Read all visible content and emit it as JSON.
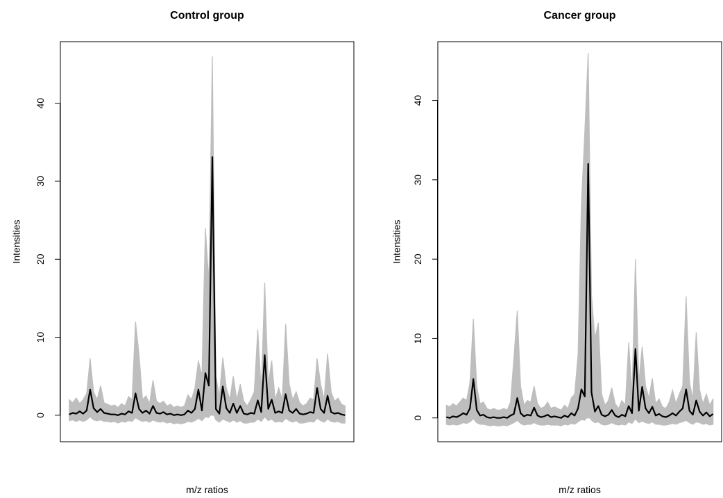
{
  "chart_data": [
    {
      "type": "line",
      "title": "Control group",
      "x_label": "m/z ratios",
      "y_label": "Intensities",
      "categories": [
        null,
        null,
        null,
        null,
        null,
        null,
        null,
        null,
        null,
        null,
        null,
        null,
        null,
        null,
        null,
        null,
        null,
        null,
        null,
        null,
        null,
        null,
        null,
        null,
        null,
        null,
        null,
        null,
        null,
        null,
        null,
        null,
        null,
        null,
        null,
        null,
        null,
        null,
        null,
        null,
        null,
        null,
        null,
        null,
        null,
        null,
        null,
        null,
        null,
        null,
        null,
        null,
        null,
        null,
        null,
        null,
        null,
        null,
        null,
        null,
        null,
        null,
        null,
        null,
        null,
        null,
        null,
        null,
        null,
        null,
        null,
        null,
        null,
        null,
        null,
        null,
        null,
        null,
        null,
        null
      ],
      "series": [
        {
          "color": "#bebebe",
          "values": [
            2.0,
            1.6,
            2.2,
            1.5,
            2.0,
            2.8,
            7.3,
            3.0,
            2.0,
            3.8,
            1.6,
            1.4,
            1.2,
            1.3,
            1.0,
            1.5,
            1.2,
            2.4,
            2.0,
            12.0,
            7.8,
            2.0,
            2.5,
            1.5,
            4.5,
            1.8,
            1.5,
            1.8,
            1.2,
            1.4,
            1.0,
            1.2,
            1.0,
            1.2,
            2.6,
            2.0,
            3.5,
            7.0,
            5.0,
            24.0,
            17.0,
            46.0,
            5.0,
            2.5,
            7.4,
            3.5,
            2.0,
            5.0,
            2.0,
            4.0,
            1.8,
            1.2,
            2.0,
            3.0,
            11.0,
            3.0,
            17.0,
            4.0,
            7.0,
            2.0,
            3.5,
            2.0,
            11.7,
            4.0,
            2.0,
            3.0,
            1.6,
            1.2,
            1.5,
            2.2,
            2.0,
            7.3,
            4.0,
            2.0,
            7.9,
            3.0,
            1.8,
            2.2,
            1.4,
            1.2
          ]
        },
        {
          "color": "#bebebe",
          "values": [
            -0.7,
            -0.6,
            -0.8,
            -0.6,
            -0.8,
            -0.6,
            -0.2,
            -0.6,
            -0.7,
            -0.6,
            -0.8,
            -0.8,
            -0.9,
            -0.8,
            -1.0,
            -0.8,
            -0.9,
            -0.7,
            -0.8,
            -0.3,
            -0.6,
            -0.8,
            -0.7,
            -0.9,
            -0.6,
            -0.8,
            -0.9,
            -0.8,
            -1.0,
            -0.9,
            -1.1,
            -1.0,
            -1.1,
            -1.0,
            -0.8,
            -0.9,
            -0.7,
            -0.4,
            -0.7,
            -0.2,
            -0.3,
            0.5,
            -0.6,
            -0.9,
            -0.5,
            -0.7,
            -0.9,
            -0.6,
            -0.9,
            -0.7,
            -1.0,
            -1.0,
            -0.9,
            -0.9,
            -0.5,
            -0.8,
            -0.2,
            -0.7,
            -0.5,
            -0.9,
            -0.8,
            -0.9,
            -0.4,
            -0.7,
            -0.9,
            -0.7,
            -1.0,
            -1.0,
            -0.9,
            -0.8,
            -0.9,
            -0.4,
            -0.7,
            -0.9,
            -0.5,
            -0.8,
            -0.9,
            -0.8,
            -1.0,
            -1.0
          ]
        },
        {
          "color": "#000000",
          "values": [
            0.1,
            0.3,
            0.2,
            0.5,
            0.2,
            0.6,
            3.3,
            0.9,
            0.4,
            0.8,
            0.3,
            0.2,
            0.1,
            0.1,
            0.0,
            0.2,
            0.1,
            0.5,
            0.3,
            2.8,
            0.8,
            0.3,
            0.6,
            0.2,
            1.2,
            0.3,
            0.2,
            0.4,
            0.1,
            0.2,
            0.0,
            0.1,
            0.0,
            0.1,
            0.6,
            0.3,
            0.8,
            3.3,
            0.6,
            5.4,
            3.8,
            33.1,
            0.8,
            0.2,
            3.7,
            0.9,
            0.3,
            1.5,
            0.3,
            1.2,
            0.2,
            0.1,
            0.3,
            0.2,
            1.9,
            0.4,
            7.7,
            0.8,
            2.0,
            0.3,
            0.5,
            0.3,
            2.7,
            0.6,
            0.3,
            0.8,
            0.2,
            0.1,
            0.2,
            0.4,
            0.3,
            3.5,
            0.8,
            0.3,
            2.5,
            0.4,
            0.2,
            0.3,
            0.1,
            0.0
          ]
        }
      ],
      "ylim": [
        -3.4,
        47.9
      ],
      "yticks": [
        0,
        10,
        20,
        30,
        40
      ]
    },
    {
      "type": "line",
      "title": "Cancer group",
      "x_label": "m/z ratios",
      "y_label": "Intensities",
      "categories": [
        null,
        null,
        null,
        null,
        null,
        null,
        null,
        null,
        null,
        null,
        null,
        null,
        null,
        null,
        null,
        null,
        null,
        null,
        null,
        null,
        null,
        null,
        null,
        null,
        null,
        null,
        null,
        null,
        null,
        null,
        null,
        null,
        null,
        null,
        null,
        null,
        null,
        null,
        null,
        null,
        null,
        null,
        null,
        null,
        null,
        null,
        null,
        null,
        null,
        null,
        null,
        null,
        null,
        null,
        null,
        null,
        null,
        null,
        null,
        null,
        null,
        null,
        null,
        null,
        null,
        null,
        null,
        null,
        null,
        null,
        null,
        null,
        null,
        null,
        null,
        null,
        null,
        null,
        null,
        null
      ],
      "series": [
        {
          "color": "#bebebe",
          "values": [
            1.6,
            1.4,
            1.8,
            1.5,
            2.0,
            2.5,
            2.2,
            4.5,
            12.5,
            4.0,
            1.8,
            2.0,
            1.2,
            1.0,
            1.2,
            1.0,
            1.0,
            1.2,
            1.0,
            2.0,
            7.5,
            13.5,
            4.0,
            1.6,
            2.2,
            2.0,
            4.0,
            1.8,
            1.2,
            1.4,
            2.0,
            1.2,
            1.4,
            1.2,
            1.0,
            1.6,
            1.2,
            2.5,
            3.0,
            8.0,
            27.0,
            36.0,
            46.0,
            15.5,
            10.0,
            12.0,
            3.0,
            1.6,
            2.2,
            3.8,
            1.8,
            1.2,
            2.2,
            1.6,
            9.5,
            3.0,
            20.0,
            4.5,
            9.0,
            4.0,
            2.5,
            5.0,
            1.8,
            2.4,
            1.4,
            1.2,
            2.0,
            3.5,
            1.8,
            3.0,
            4.0,
            15.3,
            4.5,
            2.4,
            10.8,
            3.5,
            1.8,
            3.0,
            1.6,
            2.4
          ]
        },
        {
          "color": "#bebebe",
          "values": [
            -0.8,
            -0.9,
            -0.8,
            -0.9,
            -0.8,
            -0.6,
            -0.7,
            -0.5,
            -0.1,
            -0.6,
            -0.8,
            -0.8,
            -0.9,
            -1.0,
            -0.9,
            -1.0,
            -1.0,
            -0.9,
            -1.0,
            -0.8,
            -0.6,
            -0.3,
            -0.7,
            -0.9,
            -0.8,
            -0.8,
            -0.6,
            -0.8,
            -0.9,
            -0.9,
            -0.8,
            -0.9,
            -0.9,
            -0.9,
            -1.0,
            -0.8,
            -0.9,
            -0.7,
            -0.8,
            -0.5,
            -0.2,
            -0.3,
            0.3,
            -0.3,
            -0.6,
            -0.5,
            -0.8,
            -0.9,
            -0.8,
            -0.6,
            -0.8,
            -0.9,
            -0.8,
            -0.9,
            -0.5,
            -0.7,
            -0.1,
            -0.6,
            -0.4,
            -0.6,
            -0.7,
            -0.5,
            -0.8,
            -0.8,
            -0.9,
            -0.9,
            -0.8,
            -0.7,
            -0.8,
            -0.6,
            -0.5,
            -0.3,
            -0.6,
            -0.8,
            -0.5,
            -0.6,
            -0.8,
            -0.7,
            -0.9,
            -0.8
          ]
        },
        {
          "color": "#000000",
          "values": [
            0.1,
            0.0,
            0.2,
            0.1,
            0.3,
            0.6,
            0.4,
            1.2,
            4.9,
            1.0,
            0.3,
            0.4,
            0.1,
            0.0,
            0.1,
            0.0,
            0.0,
            0.1,
            0.0,
            0.3,
            0.5,
            2.5,
            0.6,
            0.2,
            0.4,
            0.3,
            1.3,
            0.3,
            0.1,
            0.2,
            0.4,
            0.1,
            0.2,
            0.1,
            0.0,
            0.3,
            0.1,
            0.6,
            0.3,
            1.2,
            3.6,
            2.7,
            32.0,
            3.2,
            0.8,
            1.5,
            0.4,
            0.2,
            0.4,
            1.0,
            0.3,
            0.1,
            0.4,
            0.2,
            1.5,
            0.6,
            8.7,
            0.9,
            3.9,
            1.2,
            0.6,
            1.4,
            0.3,
            0.5,
            0.2,
            0.1,
            0.3,
            0.6,
            0.3,
            0.8,
            1.2,
            3.6,
            0.9,
            0.4,
            2.2,
            0.8,
            0.3,
            0.7,
            0.2,
            0.5
          ]
        }
      ],
      "ylim": [
        -3.0,
        47.4
      ],
      "yticks": [
        0,
        10,
        20,
        30,
        40
      ]
    }
  ]
}
